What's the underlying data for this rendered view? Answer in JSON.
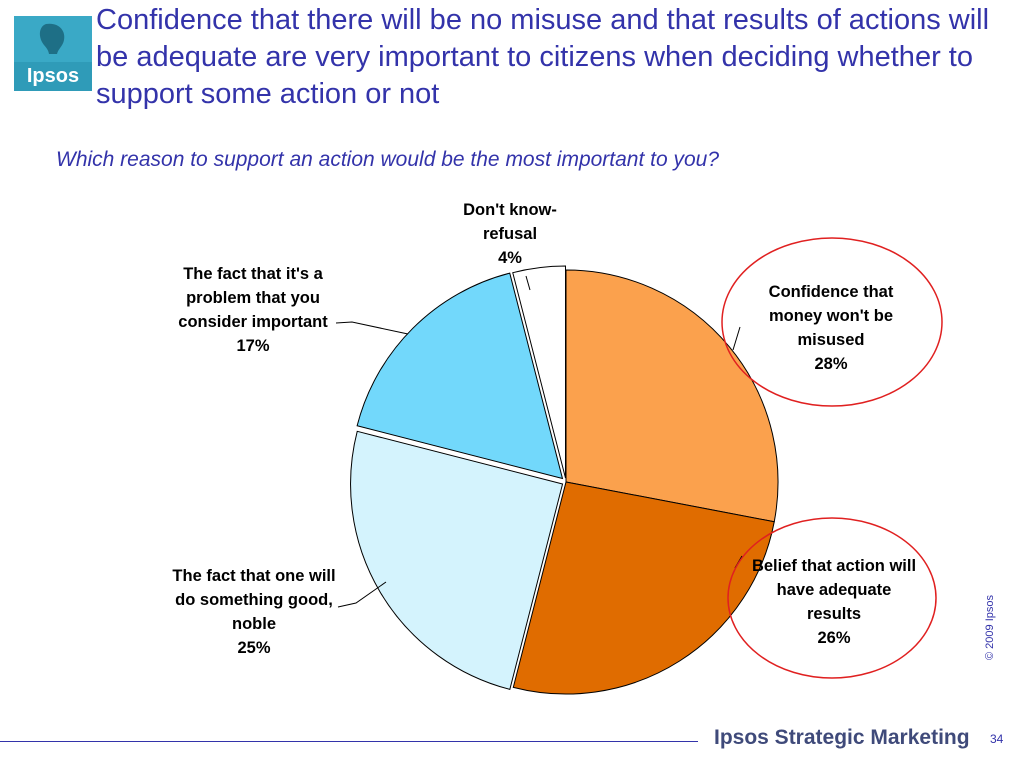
{
  "header": {
    "logo_text": "Ipsos",
    "title": "Confidence that there will be no misuse and that results of actions will be adequate are  very important to citizens when deciding whether to support some action or not",
    "subtitle": "Which reason to support an action would be the most important to you?"
  },
  "chart_data": {
    "type": "pie",
    "slices": [
      {
        "key": "misuse",
        "label": "Confidence that money won't be misused",
        "value": 28,
        "value_text": "28%",
        "color": "#fba14d",
        "highlighted": true
      },
      {
        "key": "results",
        "label": "Belief that action will have adequate results",
        "value": 26,
        "value_text": "26%",
        "color": "#e06c00",
        "highlighted": true
      },
      {
        "key": "noble",
        "label": "The fact that one will do something good, noble",
        "value": 25,
        "value_text": "25%",
        "color": "#d4f3fd",
        "highlighted": false
      },
      {
        "key": "important",
        "label": "The fact that it's a problem that you consider important",
        "value": 17,
        "value_text": "17%",
        "color": "#72d8fb",
        "highlighted": false
      },
      {
        "key": "dontknow",
        "label": "Don't know-refusal",
        "value": 4,
        "value_text": "4%",
        "color": "#ffffff",
        "highlighted": false
      }
    ],
    "start": "12 o'clock",
    "direction": "clockwise",
    "highlight_color": "#e02020"
  },
  "footer": {
    "copyright": "© 2009 Ipsos",
    "brand": "Ipsos Strategic Marketing",
    "page_number": "34"
  }
}
